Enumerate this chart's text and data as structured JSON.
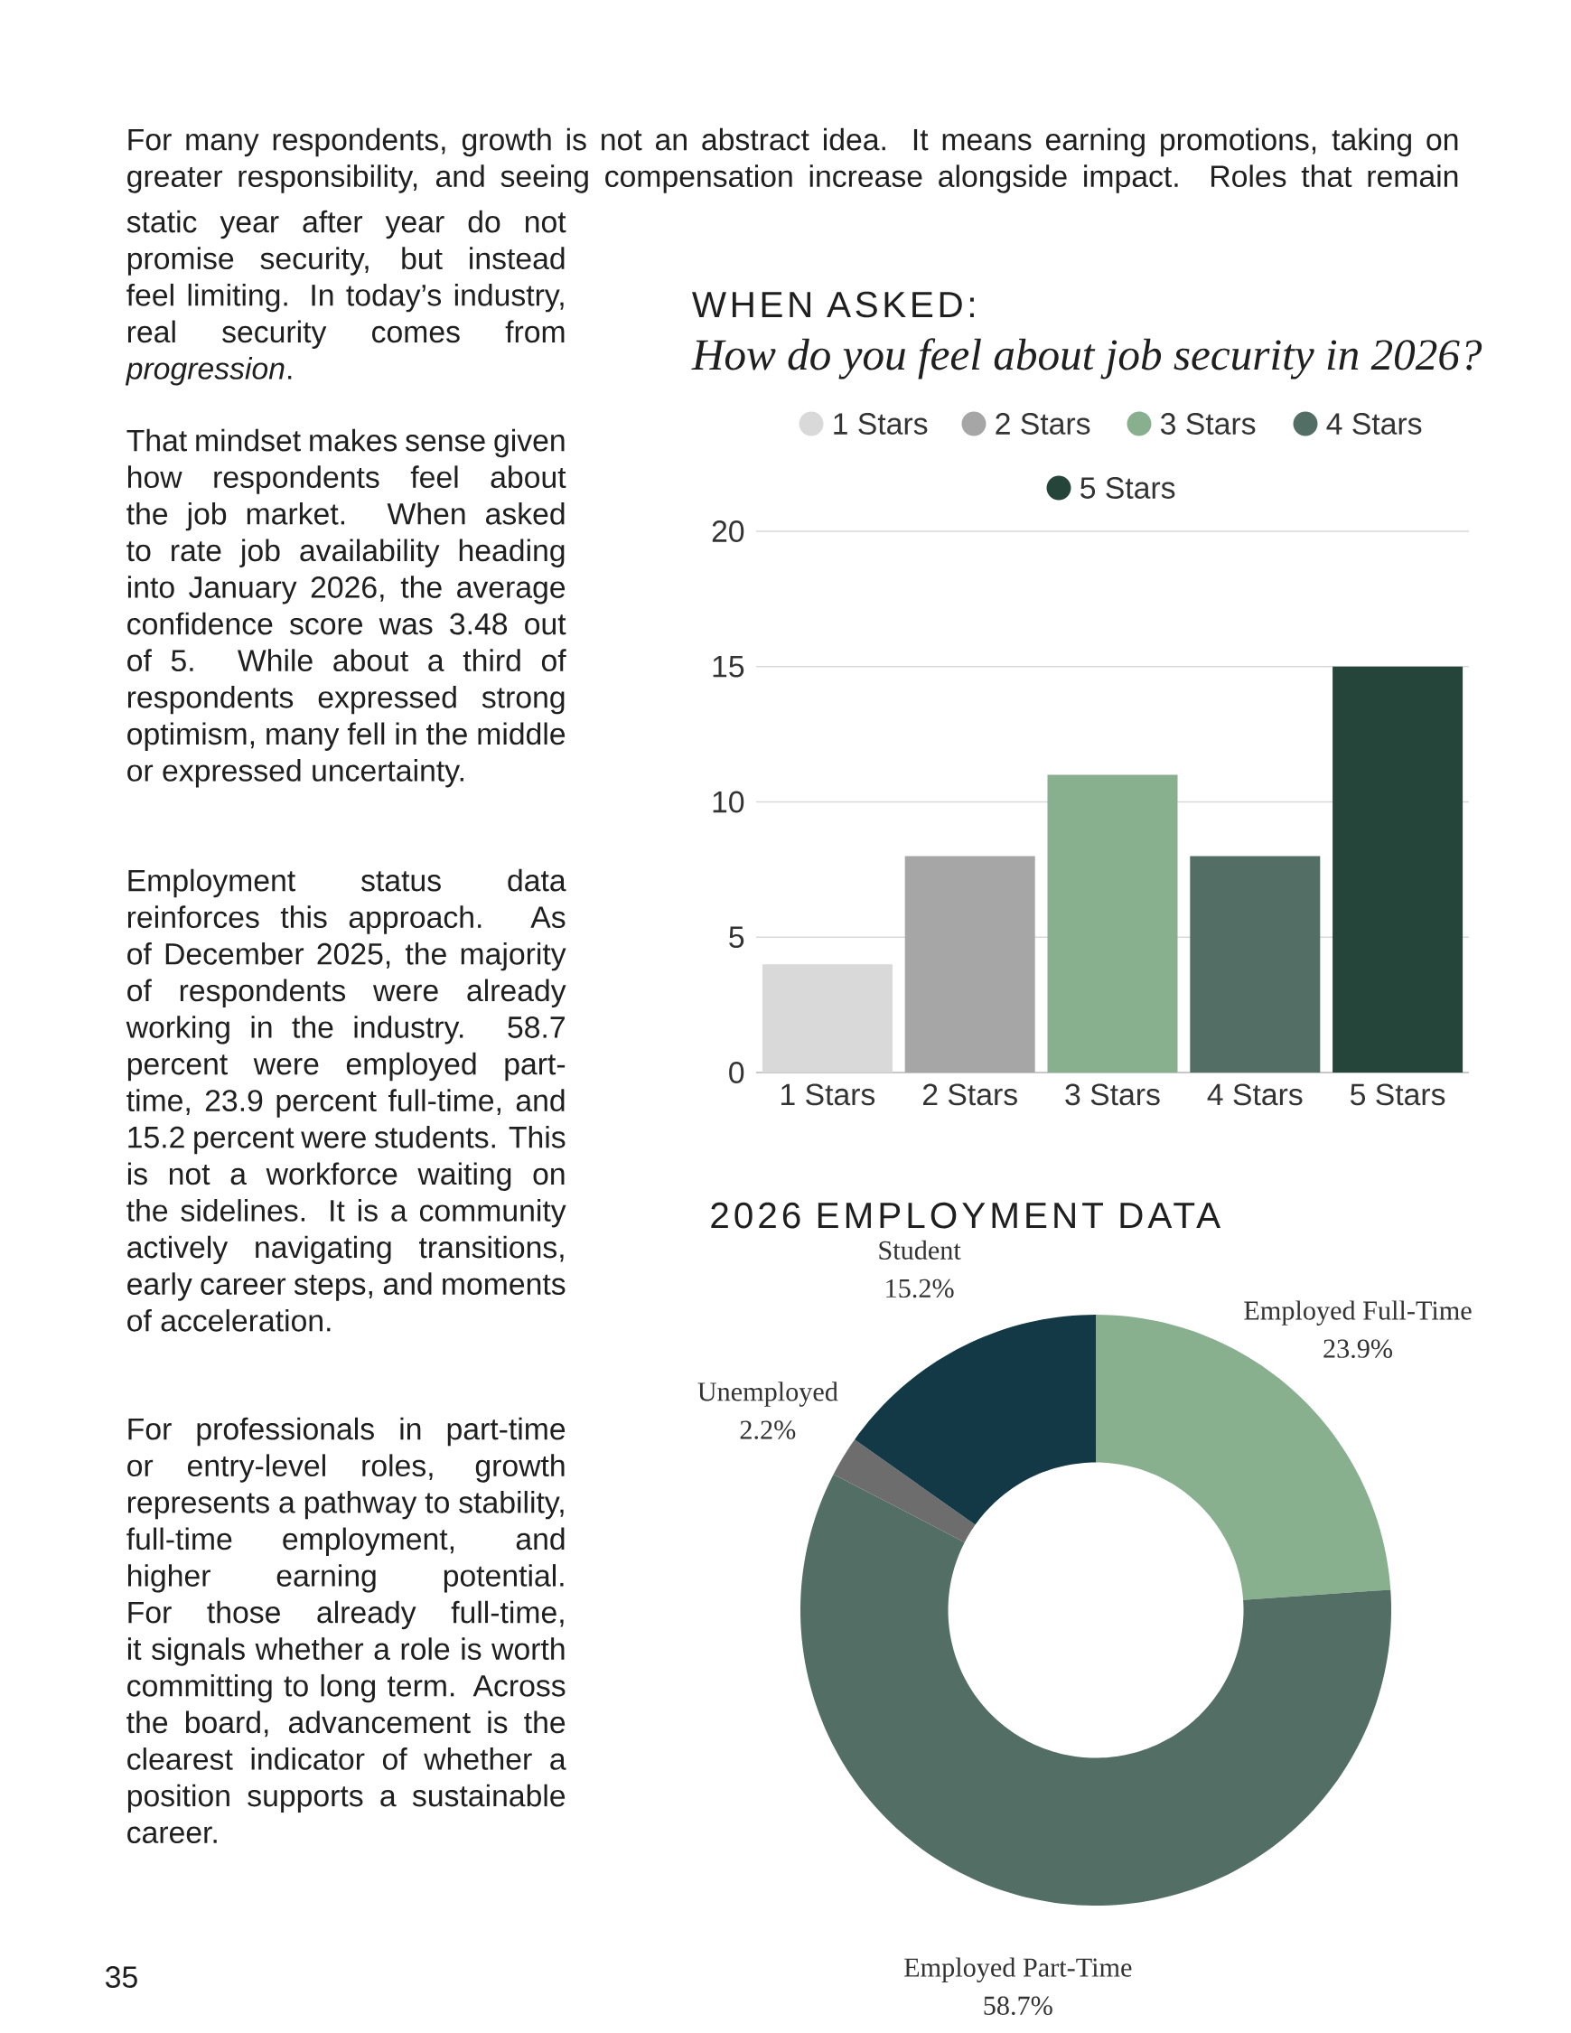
{
  "chart_data": [
    {
      "type": "other",
      "annotations": [
        "For many respondents, growth is not an abstract idea. It means earning promotions, taking on greater responsibility, and seeing compensation increase alongside impact. Roles that remain",
        "static year after year do not promise security, but instead feel limiting. In today’s industry, real security comes from *progression*.",
        "That mindset makes sense given how respondents feel about the job market. When asked to rate job availability heading into January 2026, the average confidence score was 3.48 out of 5. While about a third of respondents expressed strong optimism, many fell in the middle or expressed uncertainty.",
        "Employment status data reinforces this approach. As of December 2025, the majority of respondents were already working in the industry. 58.7 percent were employed part-time, 23.9 percent full-time, and 15.2 percent were students. This is not a workforce waiting on the sidelines. It is a community actively navigating transitions, early career steps, and moments of acceleration.",
        "For professionals in part-time or entry-level roles, growth represents a pathway to stability, full-time employment, and higher earning potential. For those already full-time, it signals whether a role is worth committing to long term. Across the board, advancement is the clearest indicator of whether a position supports a sustainable career.",
        "35"
      ]
    },
    {
      "type": "bar",
      "title": "WHEN ASKED:",
      "subtitle": "How do you feel about job security in 2026?",
      "categories": [
        "1 Stars",
        "2 Stars",
        "3 Stars",
        "4 Stars",
        "5 Stars"
      ],
      "series": [
        {
          "name": "1 Stars",
          "color": "#d9d9d9",
          "values": [
            4,
            null,
            null,
            null,
            null
          ]
        },
        {
          "name": "2 Stars",
          "color": "#a6a6a6",
          "values": [
            null,
            8,
            null,
            null,
            null
          ]
        },
        {
          "name": "3 Stars",
          "color": "#88b08f",
          "values": [
            null,
            null,
            11,
            null,
            null
          ]
        },
        {
          "name": "4 Stars",
          "color": "#536e64",
          "values": [
            null,
            null,
            null,
            8,
            null
          ]
        },
        {
          "name": "5 Stars",
          "color": "#25443a",
          "values": [
            null,
            null,
            null,
            null,
            15
          ]
        }
      ],
      "ylim": [
        0,
        20
      ],
      "yticks": [
        0,
        5,
        10,
        15,
        20
      ],
      "grid": "y",
      "legend": "top"
    },
    {
      "type": "donut",
      "title": "2026 EMPLOYMENT DATA",
      "categories": [
        "Employed Full-Time",
        "Employed Part-Time",
        "Unemployed",
        "Student"
      ],
      "values": [
        23.9,
        58.7,
        2.2,
        15.2
      ],
      "value_labels": [
        "23.9%",
        "58.7%",
        "2.2%",
        "15.2%"
      ],
      "colors": [
        "#88b08f",
        "#536e64",
        "#6d6d6d",
        "#123945"
      ]
    }
  ]
}
